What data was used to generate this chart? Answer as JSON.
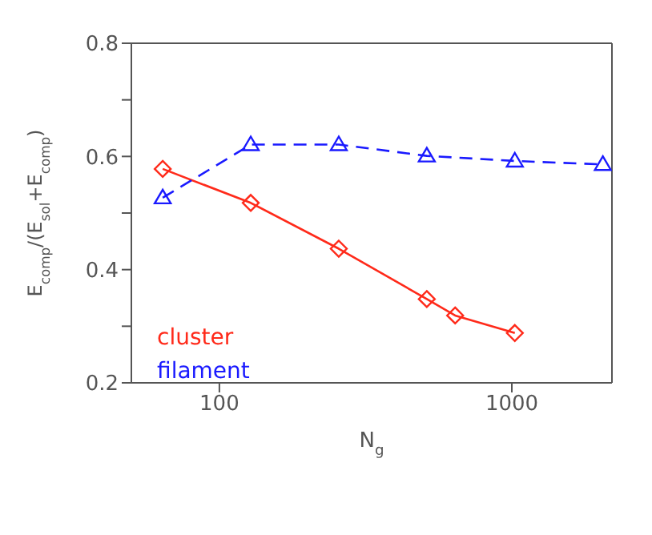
{
  "chart_data": {
    "type": "line",
    "xlabel": "N$_{g}$",
    "ylabel": "E$_{comp}$/(E$_{sol}$+E$_{comp}$)",
    "log": "x",
    "xlim": [
      50,
      2200
    ],
    "xticks": [
      100,
      1000
    ],
    "ylim": [
      0.2,
      0.8
    ],
    "yticks": [
      0.2,
      {
        "value": 0.3,
        "label": null
      },
      0.4,
      {
        "value": 0.5,
        "label": null
      },
      0.6,
      {
        "value": 0.7,
        "label": null
      },
      0.8
    ],
    "legend": "bottom left",
    "grid": false,
    "series": [
      {
        "name": "cluster",
        "color": "#ff2a1a",
        "marker": "diamond",
        "line_style": "solid",
        "x": [
          64,
          128,
          256,
          512,
          640,
          1024
        ],
        "values": [
          0.578,
          0.518,
          0.437,
          0.348,
          0.319,
          0.288
        ]
      },
      {
        "name": "filament",
        "color": "#1a1aff",
        "marker": "triangle",
        "line_style": "dashed",
        "x": [
          64,
          128,
          256,
          512,
          1024,
          2048
        ],
        "values": [
          0.527,
          0.621,
          0.621,
          0.601,
          0.592,
          0.586
        ]
      }
    ]
  }
}
